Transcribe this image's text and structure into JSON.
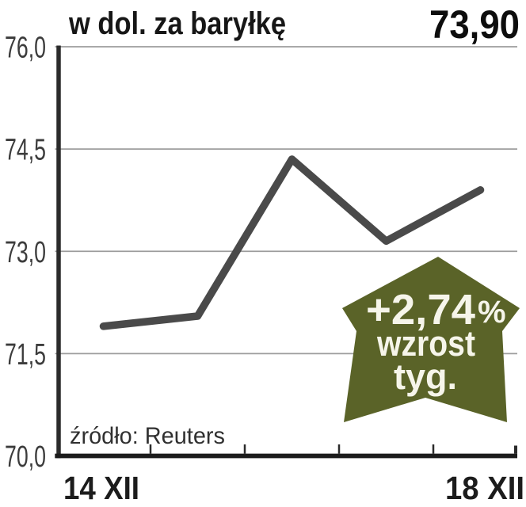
{
  "header": {
    "subtitle": "w dol. za baryłkę",
    "latest_value": "73,90"
  },
  "chart_data": {
    "type": "line",
    "title": "w dol. za baryłkę",
    "x_first_label": "14 XII",
    "x_last_label": "18 XII",
    "values": [
      71.9,
      72.05,
      74.35,
      73.15,
      73.9
    ],
    "ylim": [
      70.0,
      76.0
    ],
    "ytick_values": [
      76.0,
      74.5,
      73.0,
      71.5,
      70.0
    ],
    "ytick_labels": [
      "76,0",
      "74,5",
      "73,0",
      "71,5",
      "70,0"
    ],
    "grid": true,
    "legend": "none",
    "line_color": "#4a4a4a",
    "grid_color": "#9d9d9d",
    "axis_color": "#2b2b2b",
    "baseline_color": "#1b1b1b"
  },
  "badge": {
    "change_value": "+2,74",
    "percent_sign": "%",
    "caption_line1": "wzrost",
    "caption_line2": "tyg.",
    "color": "#5a6328",
    "text_color": "#f6f5ea"
  },
  "source": {
    "text": "źródło: Reuters"
  }
}
